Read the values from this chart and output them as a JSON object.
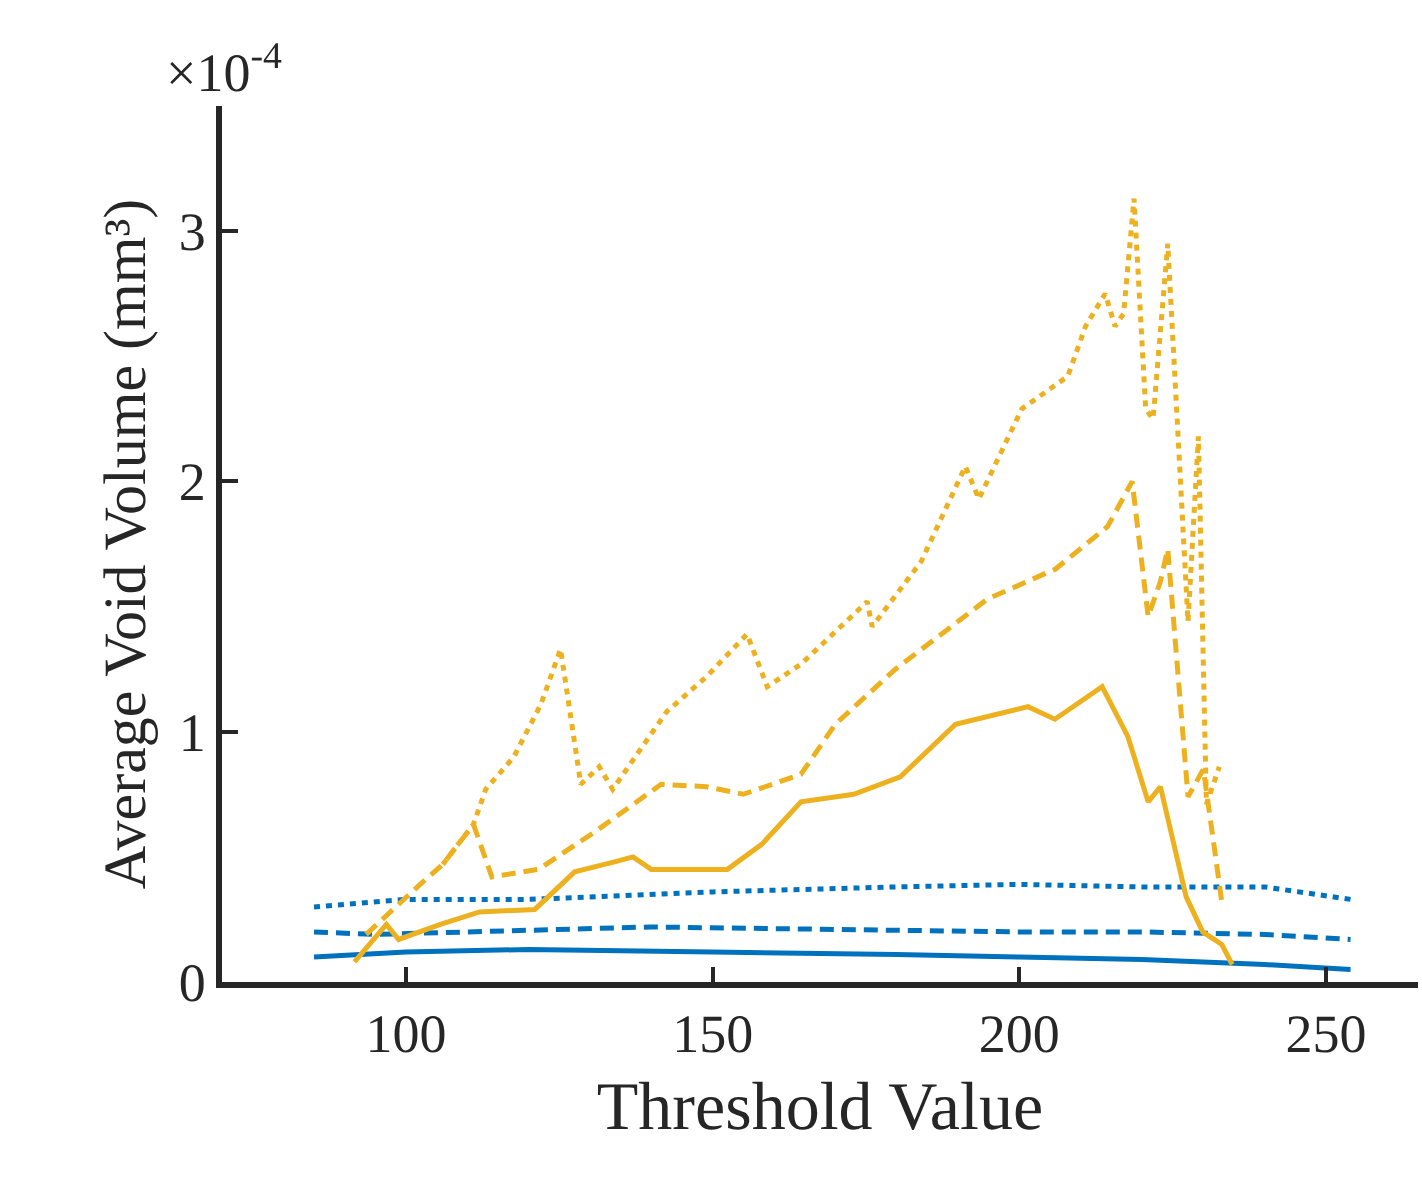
{
  "chart_data": {
    "type": "line",
    "xlabel": "Threshold Value",
    "ylabel": "Average Void Volume (mm³)",
    "annotations": [
      "×10$^{-4}$"
    ],
    "xlim": [
      70,
      265
    ],
    "xticks": [
      100,
      150,
      200,
      250
    ],
    "ylim": [
      0,
      3.5
    ],
    "yticks": [
      0,
      1,
      2,
      3
    ],
    "marker": "none",
    "series": [
      {
        "color": "#0072bd",
        "line_style": "solid",
        "x": [
          85,
          100,
          120,
          150,
          180,
          200,
          220,
          240,
          254
        ],
        "values": [
          0.1,
          0.12,
          0.13,
          0.12,
          0.11,
          0.1,
          0.09,
          0.07,
          0.05
        ]
      },
      {
        "color": "#0072bd",
        "line_style": "dashed",
        "x": [
          85,
          95,
          110,
          140,
          170,
          200,
          220,
          240,
          254
        ],
        "values": [
          0.2,
          0.19,
          0.2,
          0.22,
          0.21,
          0.2,
          0.2,
          0.19,
          0.17
        ]
      },
      {
        "color": "#0072bd",
        "line_style": "dotted",
        "x": [
          85,
          90,
          100,
          120,
          150,
          180,
          200,
          220,
          240,
          254
        ],
        "values": [
          0.3,
          0.31,
          0.33,
          0.33,
          0.36,
          0.38,
          0.39,
          0.38,
          0.38,
          0.33
        ]
      },
      {
        "color": "#edb120",
        "line_style": "solid",
        "x": [
          91.6,
          96.8,
          98.8,
          105.6,
          112,
          121,
          127.5,
          134,
          137,
          140,
          152.4,
          158,
          164.4,
          173,
          180.6,
          189.6,
          201.4,
          205.8,
          213.5,
          217.7,
          221,
          223,
          227.2,
          229.9,
          233,
          234.7
        ],
        "values": [
          0.08,
          0.23,
          0.17,
          0.23,
          0.28,
          0.29,
          0.44,
          0.48,
          0.5,
          0.45,
          0.45,
          0.55,
          0.72,
          0.75,
          0.82,
          1.03,
          1.1,
          1.05,
          1.18,
          0.98,
          0.72,
          0.78,
          0.34,
          0.2,
          0.15,
          0.07
        ]
      },
      {
        "color": "#edb120",
        "line_style": "dashed",
        "x": [
          93.5,
          102.3,
          106,
          111,
          114,
          121.6,
          130.8,
          141.6,
          149,
          155,
          164.4,
          170,
          179.8,
          194.8,
          205.9,
          214.4,
          218.4,
          221,
          223,
          224.2,
          227.5,
          230,
          232,
          233
        ],
        "values": [
          0.19,
          0.39,
          0.47,
          0.63,
          0.42,
          0.45,
          0.6,
          0.79,
          0.78,
          0.75,
          0.83,
          1.03,
          1.25,
          1.53,
          1.65,
          1.82,
          2.0,
          1.46,
          1.6,
          1.73,
          0.74,
          0.85,
          0.5,
          0.32
        ]
      },
      {
        "color": "#edb120",
        "line_style": "dotted",
        "x": [
          106,
          111,
          113,
          117.6,
          122,
          125.2,
          128.5,
          131.5,
          133.7,
          142.5,
          149,
          155.6,
          158.9,
          164.4,
          175.2,
          176,
          184,
          191.2,
          193.4,
          200.4,
          207.9,
          210.8,
          214,
          215.6,
          217,
          218.7,
          220.6,
          221.8,
          224.2,
          227.5,
          229.2,
          230.5,
          232.6
        ],
        "values": [
          0.47,
          0.63,
          0.77,
          0.9,
          1.11,
          1.33,
          0.79,
          0.86,
          0.77,
          1.08,
          1.22,
          1.39,
          1.18,
          1.27,
          1.52,
          1.42,
          1.68,
          2.06,
          1.93,
          2.29,
          2.42,
          2.62,
          2.75,
          2.62,
          2.67,
          3.13,
          2.29,
          2.25,
          2.95,
          1.44,
          2.18,
          0.71,
          0.86
        ]
      }
    ]
  }
}
